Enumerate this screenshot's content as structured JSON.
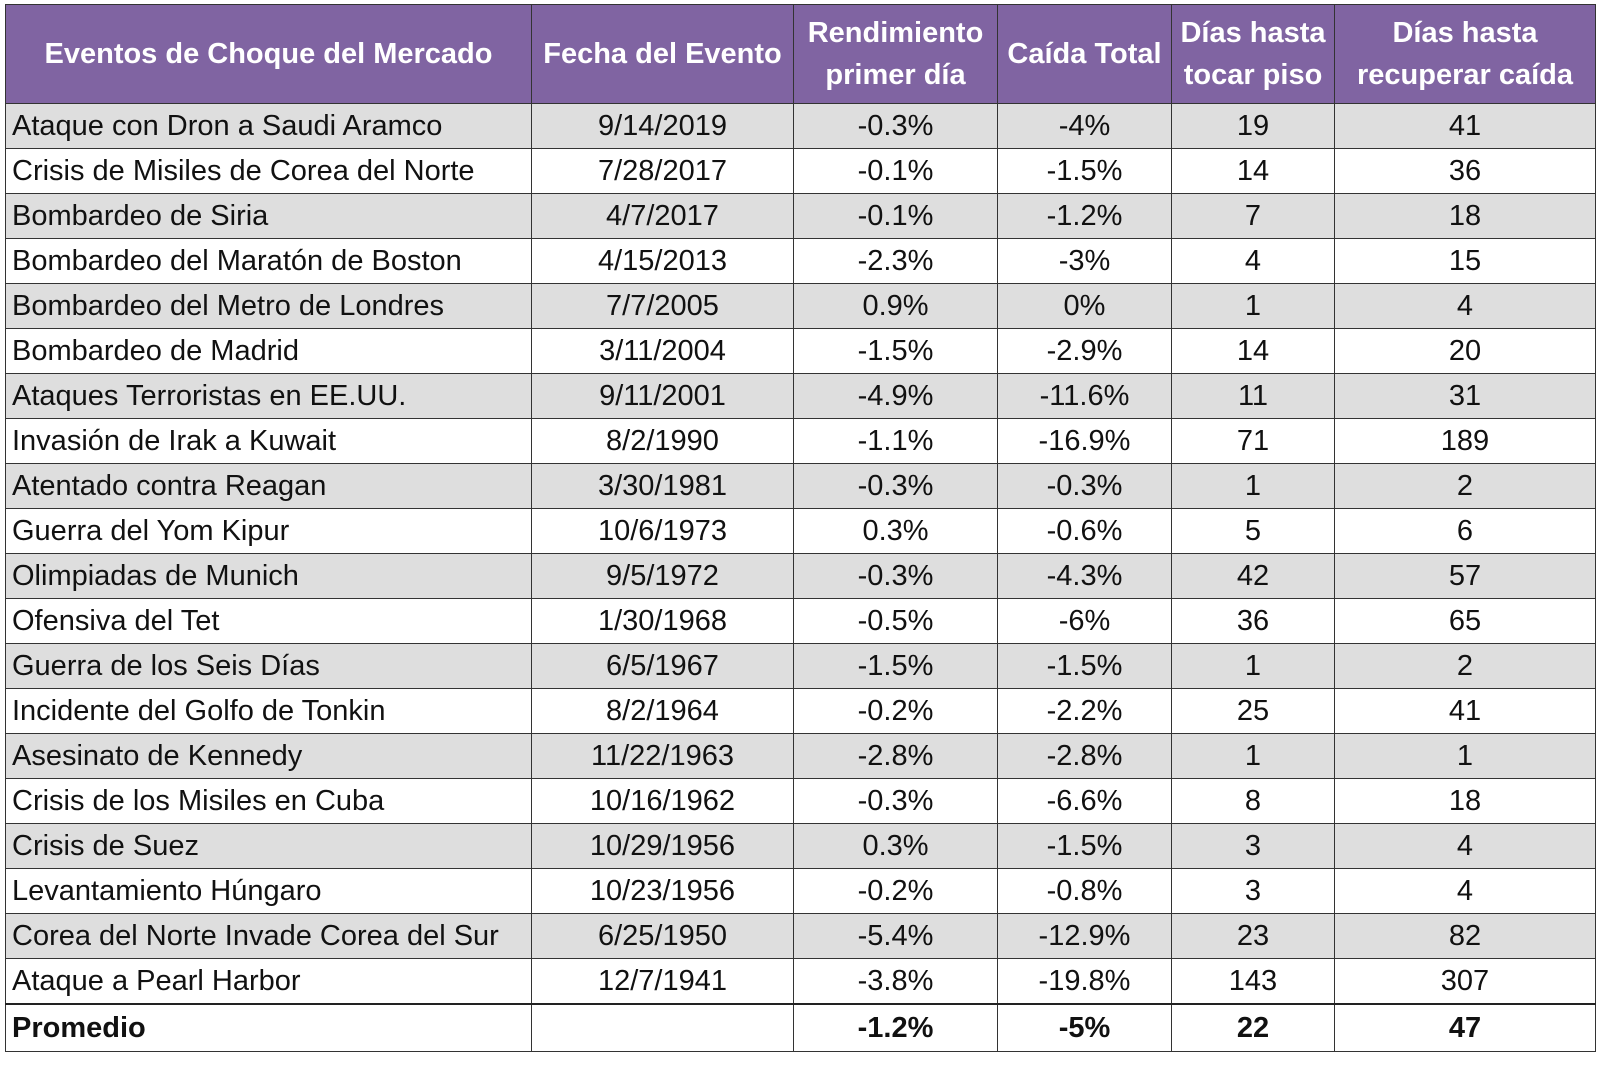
{
  "colors": {
    "header_bg": "#8064a2",
    "header_text": "#ffffff",
    "row_alt_bg": "#dedede",
    "row_bg": "#ffffff",
    "grid": "#333333"
  },
  "chart_data": {
    "type": "table",
    "columns": [
      "Eventos de Choque del Mercado",
      "Fecha del Evento",
      "Rendimiento primer día",
      "Caída Total",
      "Días hasta tocar piso",
      "Días hasta recuperar caída"
    ],
    "rows": [
      [
        "Ataque con Dron a Saudi Aramco",
        "9/14/2019",
        "-0.3%",
        "-4%",
        "19",
        "41"
      ],
      [
        "Crisis de Misiles de Corea del Norte",
        "7/28/2017",
        "-0.1%",
        "-1.5%",
        "14",
        "36"
      ],
      [
        "Bombardeo de Siria",
        "4/7/2017",
        "-0.1%",
        "-1.2%",
        "7",
        "18"
      ],
      [
        "Bombardeo del Maratón de Boston",
        "4/15/2013",
        "-2.3%",
        "-3%",
        "4",
        "15"
      ],
      [
        "Bombardeo del Metro de Londres",
        "7/7/2005",
        "0.9%",
        "0%",
        "1",
        "4"
      ],
      [
        "Bombardeo de Madrid",
        "3/11/2004",
        "-1.5%",
        "-2.9%",
        "14",
        "20"
      ],
      [
        "Ataques Terroristas en EE.UU.",
        "9/11/2001",
        "-4.9%",
        "-11.6%",
        "11",
        "31"
      ],
      [
        "Invasión de Irak a Kuwait",
        "8/2/1990",
        "-1.1%",
        "-16.9%",
        "71",
        "189"
      ],
      [
        "Atentado contra Reagan",
        "3/30/1981",
        "-0.3%",
        "-0.3%",
        "1",
        "2"
      ],
      [
        "Guerra del Yom Kipur",
        "10/6/1973",
        "0.3%",
        "-0.6%",
        "5",
        "6"
      ],
      [
        "Olimpiadas de Munich",
        "9/5/1972",
        "-0.3%",
        "-4.3%",
        "42",
        "57"
      ],
      [
        "Ofensiva del Tet",
        "1/30/1968",
        "-0.5%",
        "-6%",
        "36",
        "65"
      ],
      [
        "Guerra de los Seis Días",
        "6/5/1967",
        "-1.5%",
        "-1.5%",
        "1",
        "2"
      ],
      [
        "Incidente del Golfo de Tonkin",
        "8/2/1964",
        "-0.2%",
        "-2.2%",
        "25",
        "41"
      ],
      [
        "Asesinato de Kennedy",
        "11/22/1963",
        "-2.8%",
        "-2.8%",
        "1",
        "1"
      ],
      [
        "Crisis de los Misiles en Cuba",
        "10/16/1962",
        "-0.3%",
        "-6.6%",
        "8",
        "18"
      ],
      [
        "Crisis de Suez",
        "10/29/1956",
        "0.3%",
        "-1.5%",
        "3",
        "4"
      ],
      [
        "Levantamiento Húngaro",
        "10/23/1956",
        "-0.2%",
        "-0.8%",
        "3",
        "4"
      ],
      [
        "Corea del Norte Invade Corea del Sur",
        "6/25/1950",
        "-5.4%",
        "-12.9%",
        "23",
        "82"
      ],
      [
        "Ataque a Pearl Harbor",
        "12/7/1941",
        "-3.8%",
        "-19.8%",
        "143",
        "307"
      ]
    ],
    "footer": [
      "Promedio",
      "",
      "-1.2%",
      "-5%",
      "22",
      "47"
    ]
  }
}
